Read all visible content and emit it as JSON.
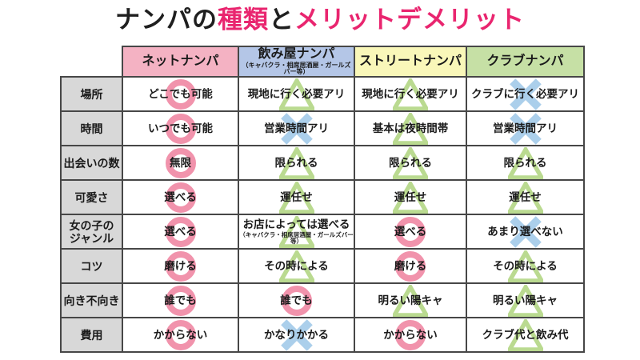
{
  "title": {
    "segments": [
      {
        "text": "ナンパの",
        "color": "#1f1f1f"
      },
      {
        "text": "種類",
        "color": "#e9256f"
      },
      {
        "text": "と",
        "color": "#1f1f1f"
      },
      {
        "text": "メリットデメリット",
        "color": "#e9256f"
      }
    ]
  },
  "colors": {
    "accent_pink": "#e9256f",
    "header_net_bg": "#f4b2c3",
    "header_nomiya_bg": "#b4c6e7",
    "header_street_bg": "#f9f7b9",
    "header_club_bg": "#c6e0a5",
    "row_header_bg": "#d8d8d8",
    "border": "#474747",
    "mark_circle": "#f193ac",
    "mark_triangle": "#bada90",
    "mark_x": "#abcfeb"
  },
  "table": {
    "columns": [
      {
        "label": "ネットナンパ",
        "sub": "",
        "bg": "#f4b2c3"
      },
      {
        "label": "飲み屋ナンパ",
        "sub": "（キャバクラ・相席居酒屋・ガールズバー等）",
        "bg": "#b4c6e7"
      },
      {
        "label": "ストリートナンパ",
        "sub": "",
        "bg": "#f9f7b9"
      },
      {
        "label": "クラブナンパ",
        "sub": "",
        "bg": "#c6e0a5"
      }
    ],
    "rows": [
      {
        "header": "場所",
        "cells": [
          {
            "text": "どこでも可能",
            "sub": "",
            "mark": "circle"
          },
          {
            "text": "現地に行く必要アリ",
            "sub": "",
            "mark": "triangle"
          },
          {
            "text": "現地に行く必要アリ",
            "sub": "",
            "mark": "triangle"
          },
          {
            "text": "クラブに行く必要アリ",
            "sub": "",
            "mark": "x"
          }
        ]
      },
      {
        "header": "時間",
        "cells": [
          {
            "text": "いつでも可能",
            "sub": "",
            "mark": "circle"
          },
          {
            "text": "営業時間アリ",
            "sub": "",
            "mark": "x"
          },
          {
            "text": "基本は夜時間帯",
            "sub": "",
            "mark": "triangle"
          },
          {
            "text": "営業時間アリ",
            "sub": "",
            "mark": "x"
          }
        ]
      },
      {
        "header": "出会いの数",
        "cells": [
          {
            "text": "無限",
            "sub": "",
            "mark": "circle"
          },
          {
            "text": "限られる",
            "sub": "",
            "mark": "triangle"
          },
          {
            "text": "限られる",
            "sub": "",
            "mark": "triangle"
          },
          {
            "text": "限られる",
            "sub": "",
            "mark": "triangle"
          }
        ]
      },
      {
        "header": "可愛さ",
        "cells": [
          {
            "text": "選べる",
            "sub": "",
            "mark": "circle"
          },
          {
            "text": "運任せ",
            "sub": "",
            "mark": "triangle"
          },
          {
            "text": "運任せ",
            "sub": "",
            "mark": "triangle"
          },
          {
            "text": "運任せ",
            "sub": "",
            "mark": "triangle"
          }
        ]
      },
      {
        "header": "女の子の\nジャンル",
        "cells": [
          {
            "text": "選べる",
            "sub": "",
            "mark": "circle"
          },
          {
            "text": "お店によっては選べる",
            "sub": "（キャバクラ・相席居酒屋・ガールズバー等）",
            "mark": "triangle"
          },
          {
            "text": "選べる",
            "sub": "",
            "mark": "circle"
          },
          {
            "text": "あまり選べない",
            "sub": "",
            "mark": "x"
          }
        ]
      },
      {
        "header": "コツ",
        "cells": [
          {
            "text": "磨ける",
            "sub": "",
            "mark": "circle"
          },
          {
            "text": "その時による",
            "sub": "",
            "mark": "triangle"
          },
          {
            "text": "磨ける",
            "sub": "",
            "mark": "circle"
          },
          {
            "text": "その時による",
            "sub": "",
            "mark": "triangle"
          }
        ]
      },
      {
        "header": "向き不向き",
        "cells": [
          {
            "text": "誰でも",
            "sub": "",
            "mark": "circle"
          },
          {
            "text": "誰でも",
            "sub": "",
            "mark": "circle"
          },
          {
            "text": "明るい陽キャ",
            "sub": "",
            "mark": "triangle"
          },
          {
            "text": "明るい陽キャ",
            "sub": "",
            "mark": "triangle"
          }
        ]
      },
      {
        "header": "費用",
        "cells": [
          {
            "text": "かからない",
            "sub": "",
            "mark": "circle"
          },
          {
            "text": "かなりかかる",
            "sub": "",
            "mark": "x"
          },
          {
            "text": "かからない",
            "sub": "",
            "mark": "circle"
          },
          {
            "text": "クラブ代と飲み代",
            "sub": "",
            "mark": "triangle"
          }
        ]
      }
    ]
  }
}
